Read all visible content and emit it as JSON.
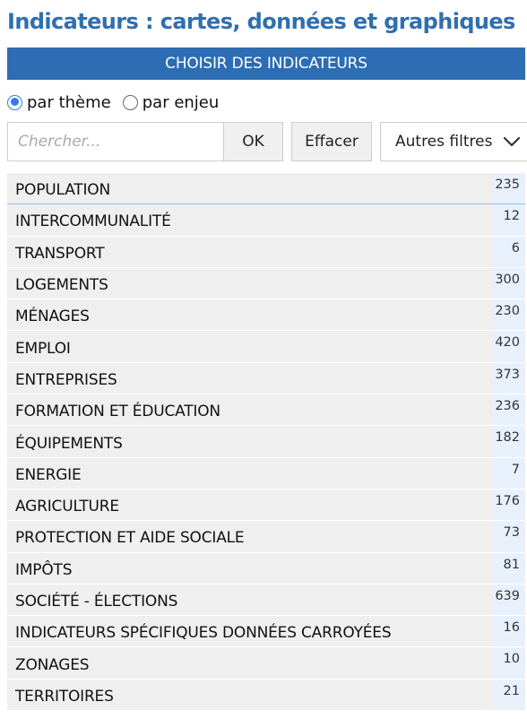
{
  "page": {
    "title": "Indicateurs : cartes, données et graphiques",
    "banner": "CHOISIR DES INDICATEURS"
  },
  "radios": [
    {
      "label": "par thème",
      "checked": true
    },
    {
      "label": "par enjeu",
      "checked": false
    }
  ],
  "search": {
    "placeholder": "Chercher...",
    "value": "",
    "ok_label": "OK",
    "clear_label": "Effacer",
    "filters_label": "Autres filtres",
    "filters_icon": "chevron-down-icon"
  },
  "themes": [
    {
      "label": "POPULATION",
      "count": "235"
    },
    {
      "label": "INTERCOMMUNALITÉ",
      "count": "12"
    },
    {
      "label": "TRANSPORT",
      "count": "6"
    },
    {
      "label": "LOGEMENTS",
      "count": "300"
    },
    {
      "label": "MÉNAGES",
      "count": "230"
    },
    {
      "label": "EMPLOI",
      "count": "420"
    },
    {
      "label": "ENTREPRISES",
      "count": "373"
    },
    {
      "label": "FORMATION ET ÉDUCATION",
      "count": "236"
    },
    {
      "label": "ÉQUIPEMENTS",
      "count": "182"
    },
    {
      "label": "ENERGIE",
      "count": "7"
    },
    {
      "label": "AGRICULTURE",
      "count": "176"
    },
    {
      "label": "PROTECTION ET AIDE SOCIALE",
      "count": "73"
    },
    {
      "label": "IMPÔTS",
      "count": "81"
    },
    {
      "label": "SOCIÉTÉ - ÉLECTIONS",
      "count": "639"
    },
    {
      "label": "INDICATEURS SPÉCIFIQUES DONNÉES CARROYÉES",
      "count": "16"
    },
    {
      "label": "ZONAGES",
      "count": "10"
    },
    {
      "label": "TERRITOIRES",
      "count": "21"
    }
  ],
  "colors": {
    "title": "#2f6fb0",
    "banner_bg": "#2c6db4",
    "radio_accent": "#2f7fe8",
    "row_bg": "#efefef",
    "count_bg": "#e8f1fb"
  }
}
